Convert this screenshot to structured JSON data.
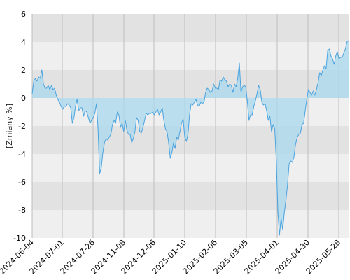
{
  "chart_data": {
    "type": "area",
    "ylabel": "[Zmiany %]",
    "ylim": [
      -10,
      6
    ],
    "yticks": [
      6,
      4,
      2,
      0,
      -2,
      -4,
      -6,
      -8,
      -10
    ],
    "grid": true,
    "x_tick_labels": [
      "2024-06-04",
      "2024-07-01",
      "2024-07-26",
      "2024-11-08",
      "2024-12-06",
      "2025-01-10",
      "2025-02-06",
      "2025-03-05",
      "2025-04-01",
      "2025-04-30",
      "2025-05-28"
    ],
    "colors": {
      "line": "#4aa3df",
      "fill": "#a8d8ee",
      "band_dark": "#e2e2e2",
      "band_light": "#efefef",
      "vgrid": "#bdbdbd"
    },
    "series": [
      {
        "values": [
          0.3,
          1.2,
          1.4,
          1.2,
          1.5,
          1.4,
          2.0,
          1.0,
          0.7,
          0.7,
          0.9,
          0.6,
          0.9,
          0.6,
          0.7,
          0.2,
          -0.1,
          -0.3,
          -0.6,
          -0.8,
          -0.6,
          -0.6,
          -0.4,
          -0.5,
          -0.7,
          -1.8,
          -1.4,
          -0.6,
          -0.1,
          -0.9,
          -0.7,
          -0.7,
          -1.3,
          -0.9,
          -1.0,
          -1.4,
          -1.8,
          -1.6,
          -1.4,
          -1.1,
          -0.4,
          -2.2,
          -5.4,
          -5.0,
          -3.9,
          -3.2,
          -2.9,
          -3.0,
          -2.8,
          -2.6,
          -1.9,
          -1.6,
          -1.8,
          -1.0,
          -1.2,
          -2.1,
          -1.8,
          -2.4,
          -1.6,
          -2.3,
          -2.6,
          -2.6,
          -3.2,
          -2.9,
          -2.4,
          -1.4,
          -1.6,
          -2.4,
          -2.5,
          -2.1,
          -1.6,
          -1.1,
          -1.2,
          -1.1,
          -1.1,
          -1.0,
          -1.2,
          -1.0,
          -0.8,
          -1.2,
          -1.0,
          -0.7,
          -1.6,
          -2.2,
          -2.4,
          -3.2,
          -4.3,
          -3.9,
          -3.2,
          -3.6,
          -2.8,
          -3.0,
          -2.4,
          -1.8,
          -1.5,
          -2.8,
          -3.1,
          -2.6,
          -1.2,
          -0.4,
          -0.5,
          -0.3,
          -0.1,
          -0.5,
          -0.6,
          -0.3,
          -0.4,
          -0.3,
          0.4,
          0.7,
          0.6,
          0.4,
          0.5,
          1.0,
          0.7,
          0.7,
          0.6,
          1.3,
          1.2,
          1.5,
          1.3,
          1.2,
          0.8,
          1.0,
          0.9,
          0.4,
          1.0,
          0.8,
          1.4,
          2.5,
          0.4,
          0.8,
          0.9,
          0.8,
          -0.3,
          -1.6,
          -1.2,
          -1.2,
          -0.6,
          -0.2,
          0.3,
          0.9,
          0.6,
          -0.3,
          -0.5,
          -0.4,
          -0.9,
          -1.6,
          -1.3,
          -2.4,
          -1.9,
          -2.2,
          -4.5,
          -8.1,
          -9.8,
          -8.6,
          -9.4,
          -8.2,
          -7.3,
          -6.2,
          -4.7,
          -4.5,
          -4.6,
          -4.2,
          -3.3,
          -2.8,
          -2.6,
          -2.5,
          -1.9,
          -1.8,
          -0.9,
          -0.1,
          0.6,
          0.4,
          0.2,
          0.5,
          0.2,
          0.6,
          1.1,
          1.8,
          1.6,
          2.0,
          2.3,
          2.1,
          3.4,
          3.5,
          3.0,
          2.8,
          2.4,
          3.0,
          3.3,
          2.8,
          2.9,
          2.9,
          3.2,
          3.5,
          4.0,
          4.1
        ]
      }
    ]
  }
}
